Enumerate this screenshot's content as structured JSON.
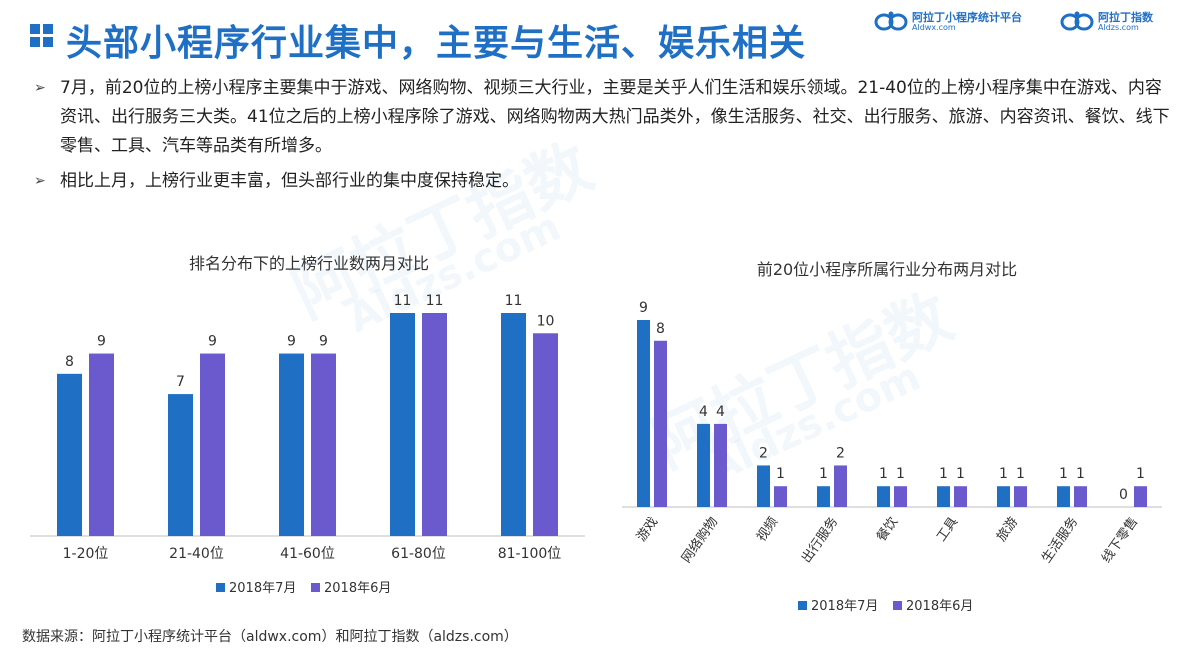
{
  "title": "头部小程序行业集中，主要与生活、娱乐相关",
  "logos": [
    {
      "name": "阿拉丁小程序统计平台",
      "url": "Aldwx.com",
      "icon": "aladdin-logo-icon"
    },
    {
      "name": "阿拉丁指数",
      "url": "Aldzs.com",
      "icon": "aladdin-logo-icon"
    }
  ],
  "bullets": [
    "7月，前20位的上榜小程序主要集中于游戏、网络购物、视频三大行业，主要是关乎人们生活和娱乐领域。21-40位的上榜小程序集中在游戏、内容资讯、出行服务三大类。41位之后的上榜小程序除了游戏、网络购物两大热门品类外，像生活服务、社交、出行服务、旅游、内容资讯、餐饮、线下零售、工具、汽车等品类有所增多。",
    "相比上月，上榜行业更丰富，但头部行业的集中度保持稳定。"
  ],
  "watermark": {
    "text1": "阿拉丁指数",
    "text2": "Aldzs.com"
  },
  "colors": {
    "series1": "#1f6fc5",
    "series2": "#6a5acd",
    "title": "#1f6fc5"
  },
  "chart_data": [
    {
      "type": "bar",
      "title": "排名分布下的上榜行业数两月对比",
      "categories": [
        "1-20位",
        "21-40位",
        "41-60位",
        "61-80位",
        "81-100位"
      ],
      "series": [
        {
          "name": "2018年7月",
          "values": [
            8,
            7,
            9,
            11,
            11
          ]
        },
        {
          "name": "2018年6月",
          "values": [
            9,
            9,
            9,
            11,
            10
          ]
        }
      ],
      "ylim": [
        0,
        11
      ],
      "grid": false,
      "legend": "bottom"
    },
    {
      "type": "bar",
      "title": "前20位小程序所属行业分布两月对比",
      "categories": [
        "游戏",
        "网络购物",
        "视频",
        "出行服务",
        "餐饮",
        "工具",
        "旅游",
        "生活服务",
        "线下零售"
      ],
      "series": [
        {
          "name": "2018年7月",
          "values": [
            9,
            4,
            2,
            1,
            1,
            1,
            1,
            1,
            0
          ]
        },
        {
          "name": "2018年6月",
          "values": [
            8,
            4,
            1,
            2,
            1,
            1,
            1,
            1,
            1
          ]
        }
      ],
      "ylim": [
        0,
        9
      ],
      "grid": false,
      "legend": "bottom",
      "xlabel_rotation": "diagonal"
    }
  ],
  "source": "数据来源：阿拉丁小程序统计平台（aldwx.com）和阿拉丁指数（aldzs.com）"
}
